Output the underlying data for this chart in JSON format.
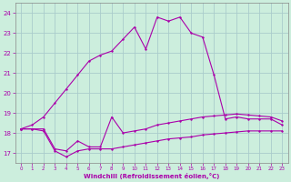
{
  "xlabel": "Windchill (Refroidissement éolien,°C)",
  "background_color": "#cceedd",
  "grid_color": "#aacccc",
  "line_color": "#aa00aa",
  "xlim": [
    -0.5,
    23.5
  ],
  "ylim": [
    16.5,
    24.5
  ],
  "xticks": [
    0,
    1,
    2,
    3,
    4,
    5,
    6,
    7,
    8,
    9,
    10,
    11,
    12,
    13,
    14,
    15,
    16,
    17,
    18,
    19,
    20,
    21,
    22,
    23
  ],
  "yticks": [
    17,
    18,
    19,
    20,
    21,
    22,
    23,
    24
  ],
  "x": [
    0,
    1,
    2,
    3,
    4,
    5,
    6,
    7,
    8,
    9,
    10,
    11,
    12,
    13,
    14,
    15,
    16,
    17,
    18,
    19,
    20,
    21,
    22,
    23
  ],
  "y_main": [
    18.2,
    18.4,
    18.8,
    19.5,
    20.2,
    20.9,
    21.6,
    21.9,
    22.1,
    22.7,
    23.3,
    22.2,
    23.8,
    23.6,
    23.8,
    23.0,
    22.8,
    20.9,
    18.7,
    18.8,
    18.7,
    18.7,
    18.7,
    18.4
  ],
  "y_mid": [
    18.2,
    18.2,
    18.2,
    17.2,
    17.1,
    17.6,
    17.3,
    17.3,
    18.8,
    18.0,
    18.1,
    18.2,
    18.4,
    18.5,
    18.6,
    18.7,
    18.8,
    18.85,
    18.9,
    18.95,
    18.9,
    18.85,
    18.8,
    18.6
  ],
  "y_lower": [
    18.2,
    18.2,
    18.1,
    17.1,
    16.8,
    17.1,
    17.2,
    17.2,
    17.2,
    17.3,
    17.4,
    17.5,
    17.6,
    17.7,
    17.75,
    17.8,
    17.9,
    17.95,
    18.0,
    18.05,
    18.1,
    18.1,
    18.1,
    18.1
  ]
}
